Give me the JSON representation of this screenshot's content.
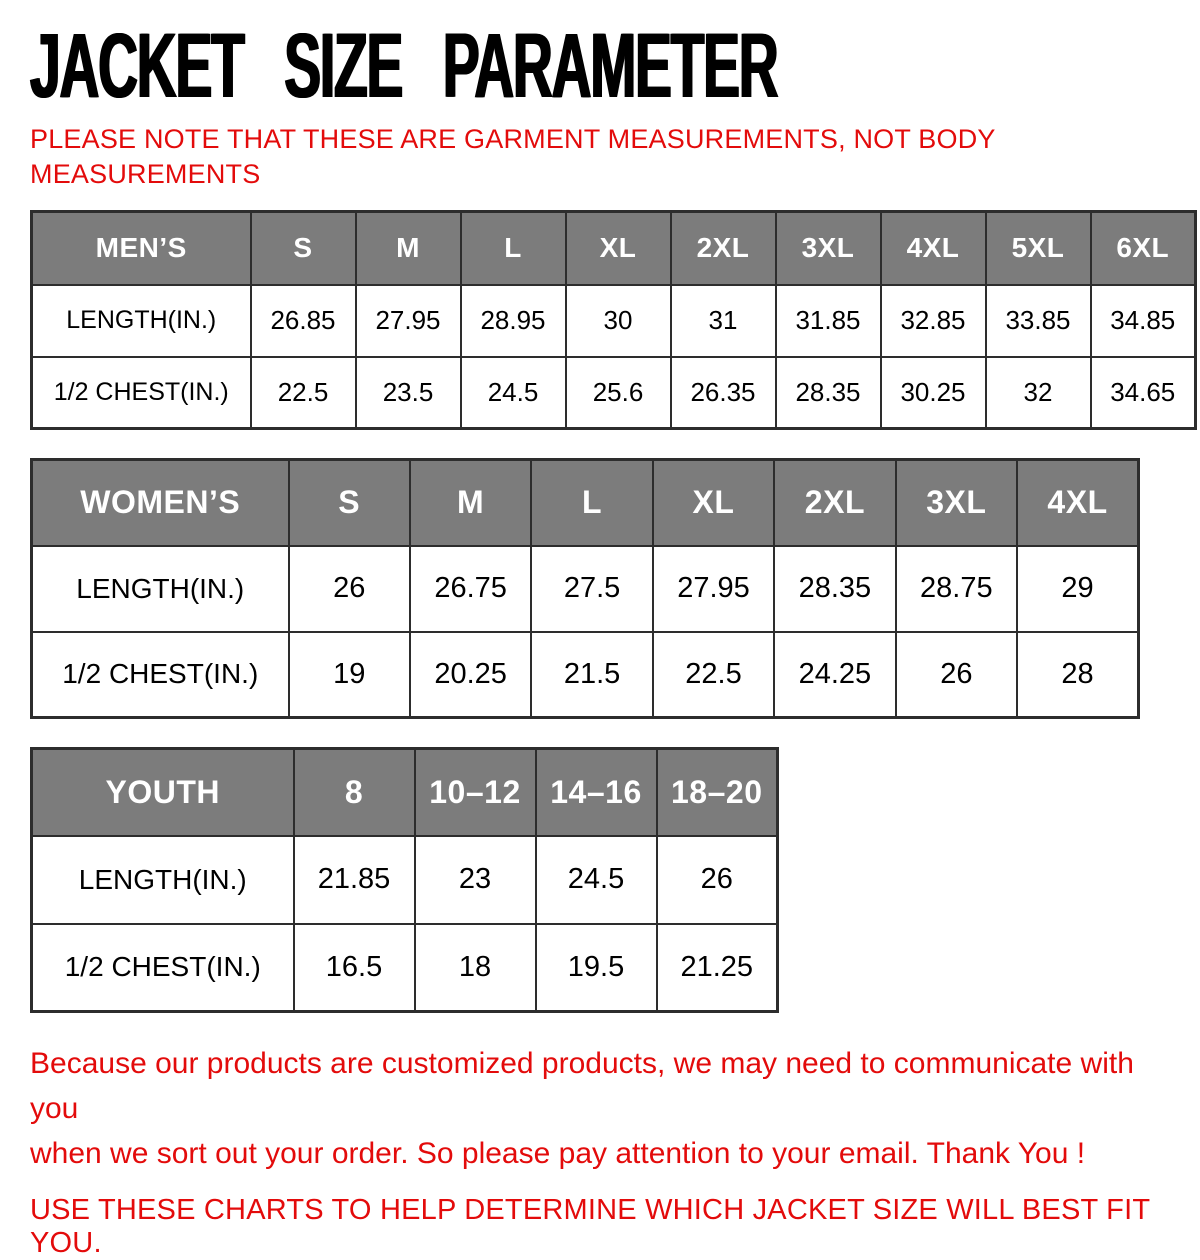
{
  "title": "JACKET SIZE PARAMETER",
  "subtitle": {
    "line1": "PLEASE NOTE THAT THESE ARE GARMENT MEASUREMENTS, NOT BODY",
    "line2": "MEASUREMENTS"
  },
  "tables": [
    {
      "id": "mens",
      "header": [
        "MEN’S",
        "S",
        "M",
        "L",
        "XL",
        "2XL",
        "3XL",
        "4XL",
        "5XL",
        "6XL"
      ],
      "rows": [
        [
          "LENGTH(IN.)",
          "26.85",
          "27.95",
          "28.95",
          "30",
          "31",
          "31.85",
          "32.85",
          "33.85",
          "34.85"
        ],
        [
          "1/2 CHEST(IN.)",
          "22.5",
          "23.5",
          "24.5",
          "25.6",
          "26.35",
          "28.35",
          "30.25",
          "32",
          "34.65"
        ]
      ]
    },
    {
      "id": "womens",
      "header": [
        "WOMEN’S",
        "S",
        "M",
        "L",
        "XL",
        "2XL",
        "3XL",
        "4XL"
      ],
      "rows": [
        [
          "LENGTH(IN.)",
          "26",
          "26.75",
          "27.5",
          "27.95",
          "28.35",
          "28.75",
          "29"
        ],
        [
          "1/2 CHEST(IN.)",
          "19",
          "20.25",
          "21.5",
          "22.5",
          "24.25",
          "26",
          "28"
        ]
      ]
    },
    {
      "id": "youth",
      "header": [
        "YOUTH",
        "8",
        "10–12",
        "14–16",
        "18–20"
      ],
      "rows": [
        [
          "LENGTH(IN.)",
          "21.85",
          "23",
          "24.5",
          "26"
        ],
        [
          "1/2 CHEST(IN.)",
          "16.5",
          "18",
          "19.5",
          "21.25"
        ]
      ]
    }
  ],
  "footer": {
    "note_line1": "Because our products are customized products, we may need to communicate with you",
    "note_line2": "when we sort out your order. So please pay attention to your email. Thank You !",
    "advice": "USE THESE CHARTS TO HELP DETERMINE WHICH JACKET SIZE WILL BEST FIT YOU."
  },
  "colors": {
    "header_bg": "#7c7c7c",
    "header_text": "#ffffff",
    "border": "#2d2d2d",
    "accent_red": "#e30b0b",
    "title_black": "#000000"
  }
}
